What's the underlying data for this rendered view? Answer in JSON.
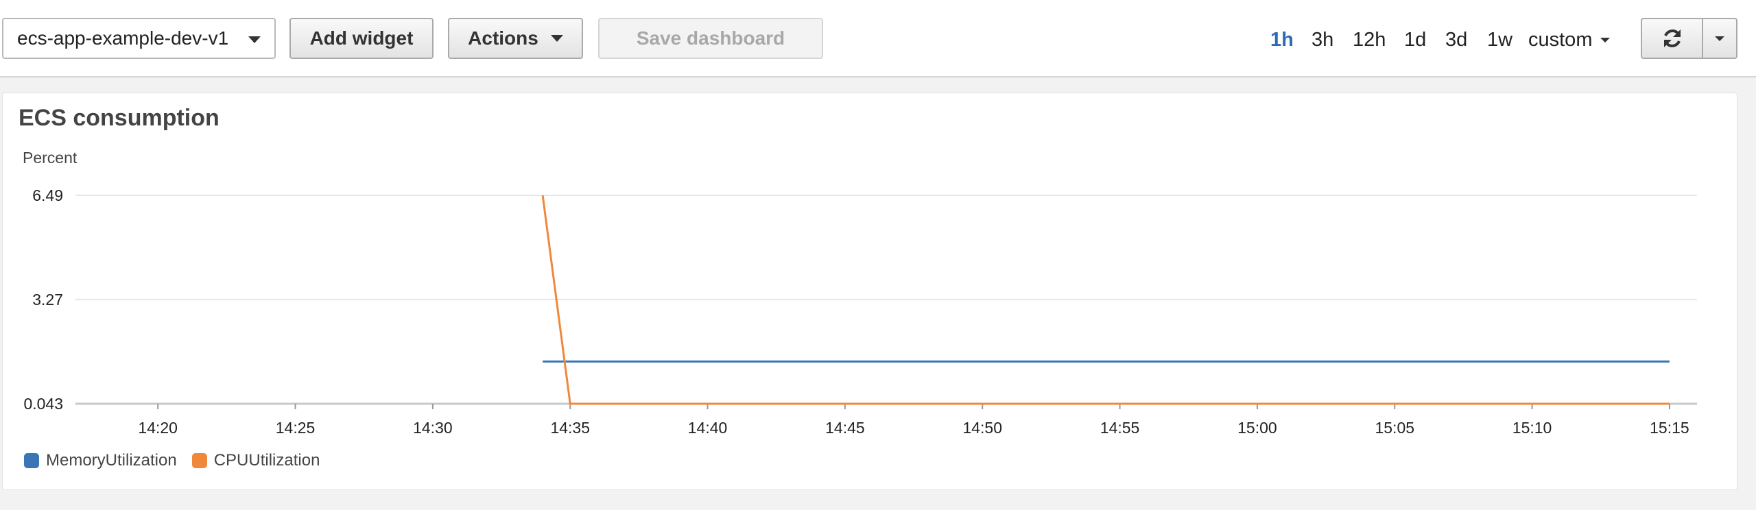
{
  "toolbar": {
    "dashboard_select": "ecs-app-example-dev-v1",
    "add_widget": "Add widget",
    "actions": "Actions",
    "save_dashboard": "Save dashboard",
    "time_ranges": [
      "1h",
      "3h",
      "12h",
      "1d",
      "3d",
      "1w"
    ],
    "active_range": "1h",
    "custom": "custom"
  },
  "widget": {
    "title": "ECS consumption"
  },
  "chart_data": {
    "type": "line",
    "ylabel": "Percent",
    "ylim": [
      0.043,
      6.49
    ],
    "y_ticks": [
      "6.49",
      "3.27",
      "0.043"
    ],
    "y_tick_values": [
      6.49,
      3.27,
      0.043
    ],
    "x_ticks": [
      "14:20",
      "14:25",
      "14:30",
      "14:35",
      "14:40",
      "14:45",
      "14:50",
      "14:55",
      "15:00",
      "15:05",
      "15:10",
      "15:15"
    ],
    "x_tick_minutes": [
      860,
      865,
      870,
      875,
      880,
      885,
      890,
      895,
      900,
      905,
      910,
      915
    ],
    "xlim_minutes": [
      857,
      916
    ],
    "grid": true,
    "legend_position": "bottom-left",
    "series": [
      {
        "name": "MemoryUtilization",
        "color": "#3a75b6",
        "x_minutes": [
          874,
          915
        ],
        "values": [
          1.35,
          1.35
        ]
      },
      {
        "name": "CPUUtilization",
        "color": "#f0883a",
        "x_minutes": [
          874,
          875,
          915
        ],
        "values": [
          6.49,
          0.043,
          0.043
        ]
      }
    ]
  },
  "icons": {
    "refresh": "refresh-icon",
    "dropdown": "chevron-down-icon"
  }
}
